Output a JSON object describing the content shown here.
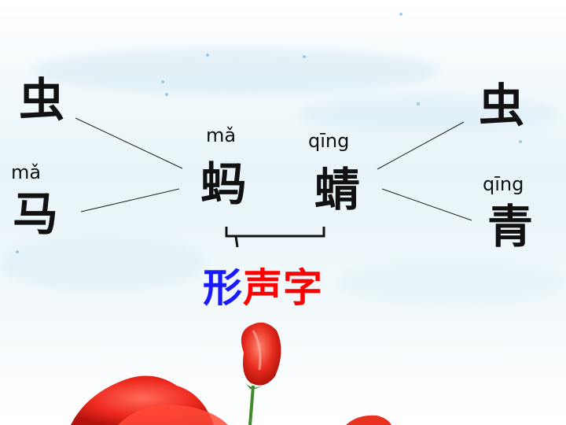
{
  "left": {
    "top_char": "虫",
    "pinyin": "mǎ",
    "bottom_char": "马"
  },
  "center": {
    "left_pinyin": "mǎ",
    "left_char": "蚂",
    "right_pinyin": "qīng",
    "right_char": "蜻"
  },
  "right": {
    "top_char": "虫",
    "pinyin": "qīng",
    "bottom_char": "青"
  },
  "label": {
    "part1": "形",
    "part2": "声",
    "part3": "字"
  },
  "colors": {
    "part1": "#1a1aff",
    "part2": "#ff0000",
    "part3": "#ff0000",
    "text": "#111111"
  }
}
